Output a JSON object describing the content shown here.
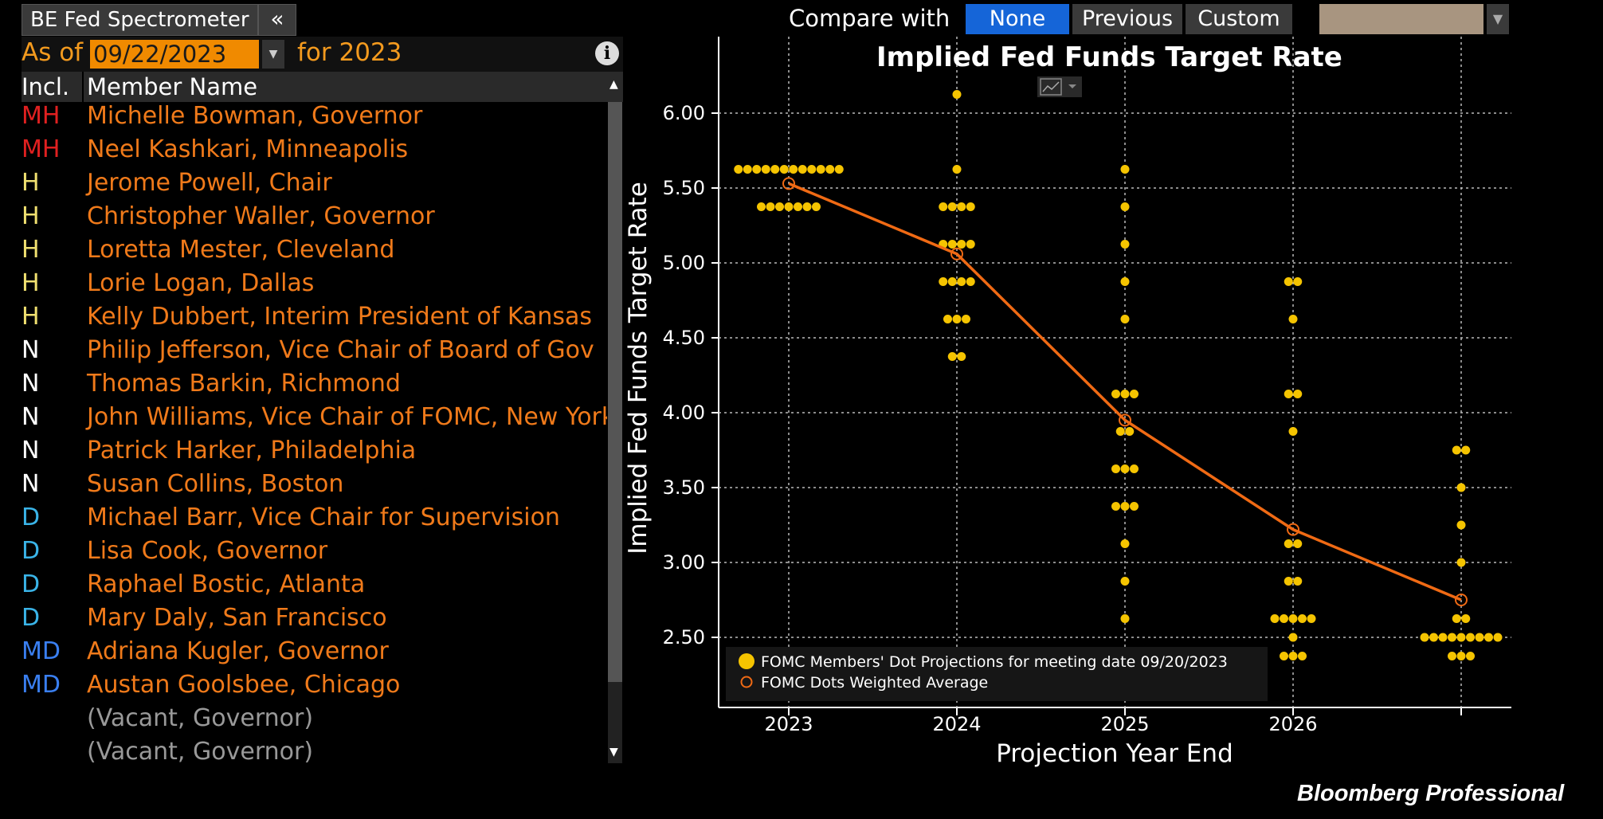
{
  "app_title": "BE Fed Spectrometer",
  "collapse_icon": "«",
  "compare": {
    "label": "Compare with",
    "options": [
      "None",
      "Previous",
      "Custom"
    ],
    "selected": "None"
  },
  "colors": {
    "background": "#000000",
    "accent_blue": "#1565d8",
    "member_name": "#f07a1a",
    "dots": "#f5c400",
    "avg_line": "#f06a14",
    "MH": "#e02020",
    "H": "#f0e070",
    "N": "#ffffff",
    "D": "#3ab4e8",
    "MD": "#3a7ff0"
  },
  "as_of": {
    "label": "As of",
    "date": "09/22/2023",
    "for_label": "for 2023"
  },
  "columns": {
    "incl": "Incl.",
    "name": "Member Name"
  },
  "members": [
    {
      "incl": "MH",
      "name": "Michelle Bowman, Governor"
    },
    {
      "incl": "MH",
      "name": "Neel Kashkari, Minneapolis"
    },
    {
      "incl": "H",
      "name": "Jerome Powell, Chair"
    },
    {
      "incl": "H",
      "name": "Christopher Waller, Governor"
    },
    {
      "incl": "H",
      "name": "Loretta Mester, Cleveland"
    },
    {
      "incl": "H",
      "name": "Lorie Logan, Dallas"
    },
    {
      "incl": "H",
      "name": "Kelly Dubbert, Interim President of Kansas"
    },
    {
      "incl": "N",
      "name": "Philip Jefferson,  Vice Chair of Board of Gov"
    },
    {
      "incl": "N",
      "name": "Thomas Barkin, Richmond"
    },
    {
      "incl": "N",
      "name": "John Williams, Vice Chair of FOMC, New York"
    },
    {
      "incl": "N",
      "name": "Patrick Harker, Philadelphia"
    },
    {
      "incl": "N",
      "name": "Susan Collins, Boston"
    },
    {
      "incl": "D",
      "name": "Michael Barr, Vice Chair for Supervision"
    },
    {
      "incl": "D",
      "name": "Lisa Cook, Governor"
    },
    {
      "incl": "D",
      "name": "Raphael Bostic, Atlanta"
    },
    {
      "incl": "D",
      "name": "Mary Daly, San Francisco"
    },
    {
      "incl": "MD",
      "name": "Adriana Kugler, Governor"
    },
    {
      "incl": "MD",
      "name": "Austan Goolsbee, Chicago"
    },
    {
      "incl": "",
      "name": "(Vacant, Governor)"
    },
    {
      "incl": "",
      "name": "(Vacant, Governor)"
    }
  ],
  "chart_data": {
    "type": "scatter",
    "title": "Implied Fed Funds Target Rate",
    "xlabel": "Projection Year End",
    "ylabel": "Implied Fed Funds Target Rate",
    "x_categories": [
      "2023",
      "2024",
      "2025",
      "2026",
      ""
    ],
    "ylim": [
      2.25,
      6.25
    ],
    "yticks": [
      "6.00",
      "5.50",
      "5.00",
      "4.50",
      "4.00",
      "3.50",
      "3.00",
      "2.50"
    ],
    "grid": true,
    "legend_position": "bottom-left",
    "legend": [
      "FOMC Members' Dot Projections for meeting date 09/20/2023",
      "FOMC Dots Weighted Average"
    ],
    "series": [
      {
        "kind": "dots",
        "points": [
          {
            "x": 0,
            "y": 5.625,
            "count": 12
          },
          {
            "x": 0,
            "y": 5.375,
            "count": 7
          },
          {
            "x": 1,
            "y": 6.125,
            "count": 1
          },
          {
            "x": 1,
            "y": 5.625,
            "count": 1
          },
          {
            "x": 1,
            "y": 5.375,
            "count": 4
          },
          {
            "x": 1,
            "y": 5.125,
            "count": 4
          },
          {
            "x": 1,
            "y": 4.875,
            "count": 4
          },
          {
            "x": 1,
            "y": 4.625,
            "count": 3
          },
          {
            "x": 1,
            "y": 4.375,
            "count": 2
          },
          {
            "x": 2,
            "y": 5.625,
            "count": 1
          },
          {
            "x": 2,
            "y": 5.375,
            "count": 1
          },
          {
            "x": 2,
            "y": 5.125,
            "count": 1
          },
          {
            "x": 2,
            "y": 4.875,
            "count": 1
          },
          {
            "x": 2,
            "y": 4.625,
            "count": 1
          },
          {
            "x": 2,
            "y": 4.125,
            "count": 3
          },
          {
            "x": 2,
            "y": 3.875,
            "count": 2
          },
          {
            "x": 2,
            "y": 3.625,
            "count": 3
          },
          {
            "x": 2,
            "y": 3.375,
            "count": 3
          },
          {
            "x": 2,
            "y": 3.125,
            "count": 1
          },
          {
            "x": 2,
            "y": 2.875,
            "count": 1
          },
          {
            "x": 2,
            "y": 2.625,
            "count": 1
          },
          {
            "x": 3,
            "y": 4.875,
            "count": 2
          },
          {
            "x": 3,
            "y": 4.625,
            "count": 1
          },
          {
            "x": 3,
            "y": 4.125,
            "count": 2
          },
          {
            "x": 3,
            "y": 3.875,
            "count": 1
          },
          {
            "x": 3,
            "y": 3.125,
            "count": 2
          },
          {
            "x": 3,
            "y": 2.875,
            "count": 2
          },
          {
            "x": 3,
            "y": 2.625,
            "count": 5
          },
          {
            "x": 3,
            "y": 2.5,
            "count": 1
          },
          {
            "x": 3,
            "y": 2.375,
            "count": 3
          },
          {
            "x": 4,
            "y": 3.75,
            "count": 2
          },
          {
            "x": 4,
            "y": 3.5,
            "count": 1
          },
          {
            "x": 4,
            "y": 3.25,
            "count": 1
          },
          {
            "x": 4,
            "y": 3.0,
            "count": 1
          },
          {
            "x": 4,
            "y": 2.625,
            "count": 2
          },
          {
            "x": 4,
            "y": 2.5,
            "count": 9
          },
          {
            "x": 4,
            "y": 2.375,
            "count": 3
          }
        ]
      },
      {
        "kind": "weighted_average",
        "x": [
          0,
          1,
          2,
          3,
          4
        ],
        "y": [
          5.53,
          5.06,
          3.95,
          3.22,
          2.75
        ]
      }
    ]
  },
  "footer": "Bloomberg Professional"
}
